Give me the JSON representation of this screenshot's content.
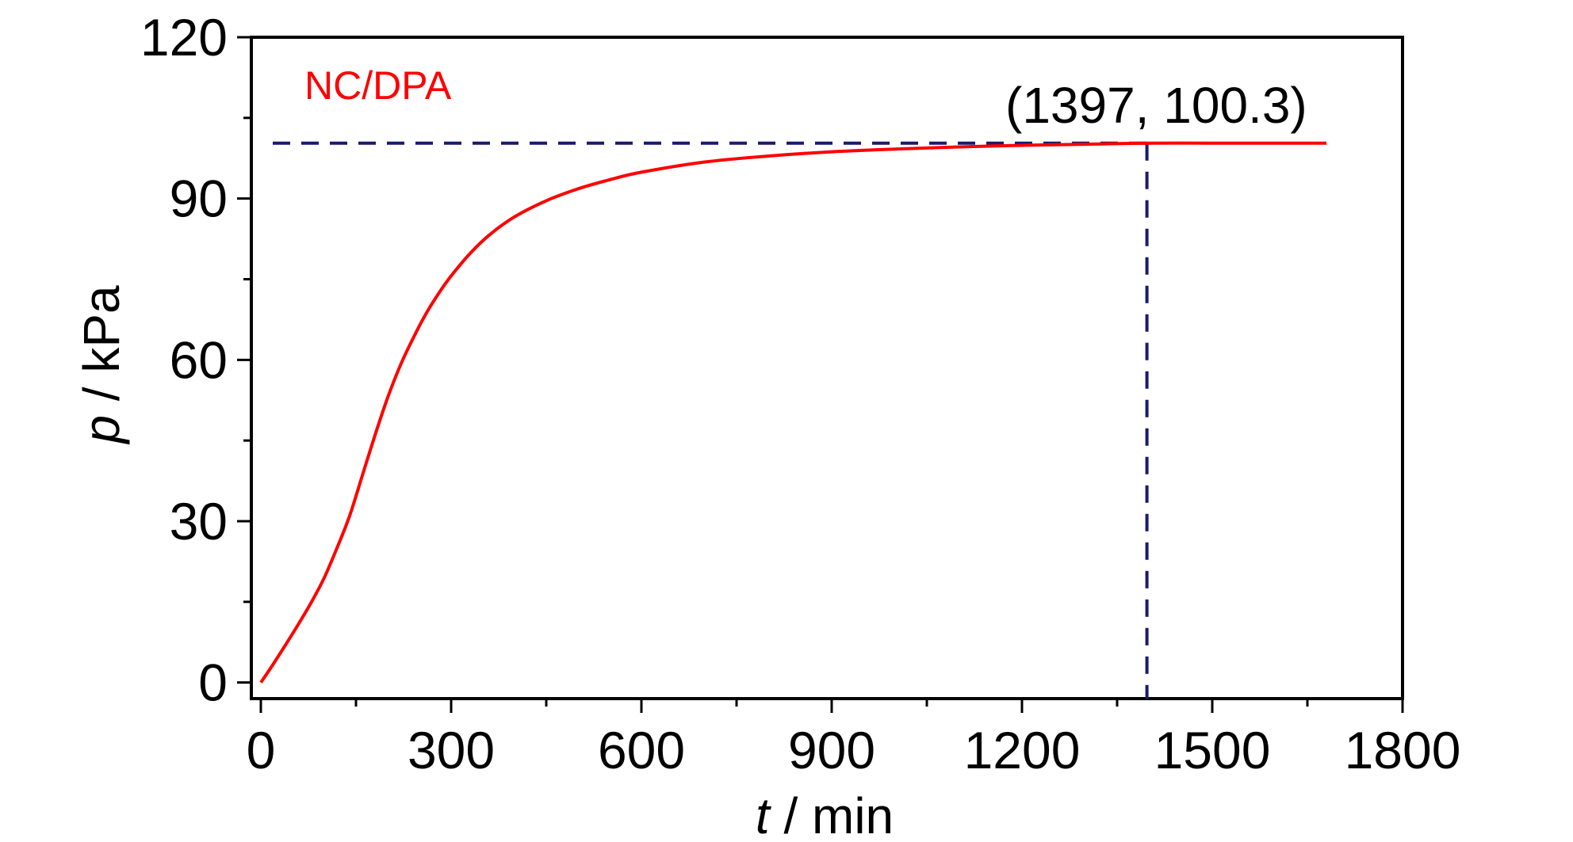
{
  "chart_data": {
    "type": "line",
    "xlabel": {
      "italic": "t",
      "rest": " / min"
    },
    "ylabel": {
      "italic": "p",
      "rest": " / kPa"
    },
    "xlim": [
      -15,
      1800
    ],
    "ylim": [
      -3,
      120
    ],
    "x_ticks": [
      0,
      300,
      600,
      900,
      1200,
      1500,
      1800
    ],
    "y_ticks": [
      0,
      30,
      60,
      90,
      120
    ],
    "x_tick_labels": [
      "0",
      "300",
      "600",
      "900",
      "1200",
      "1500",
      "1800"
    ],
    "y_tick_labels": [
      "0",
      "30",
      "60",
      "90",
      "120"
    ],
    "grid": false,
    "legend_position": "top-left",
    "series": [
      {
        "name": "NC/DPA",
        "color": "#ff0000",
        "x": [
          0,
          20,
          40,
          60,
          80,
          100,
          120,
          140,
          160,
          180,
          200,
          220,
          240,
          260,
          280,
          300,
          330,
          360,
          400,
          450,
          500,
          550,
          600,
          700,
          800,
          900,
          1000,
          1100,
          1200,
          1300,
          1397,
          1500,
          1600,
          1680
        ],
        "y": [
          0,
          3.5,
          7.2,
          11.0,
          15.0,
          19.5,
          25.0,
          31.0,
          38.5,
          46.0,
          53.0,
          59.0,
          64.0,
          68.5,
          72.3,
          75.6,
          79.8,
          83.2,
          86.6,
          89.6,
          91.8,
          93.5,
          94.9,
          96.8,
          97.9,
          98.7,
          99.2,
          99.6,
          99.9,
          100.1,
          100.3,
          100.3,
          100.3,
          100.3
        ]
      }
    ],
    "annotation": {
      "label": "(1397, 100.3)",
      "point": [
        1397,
        100.3
      ],
      "color": "#1a1a6e"
    }
  }
}
